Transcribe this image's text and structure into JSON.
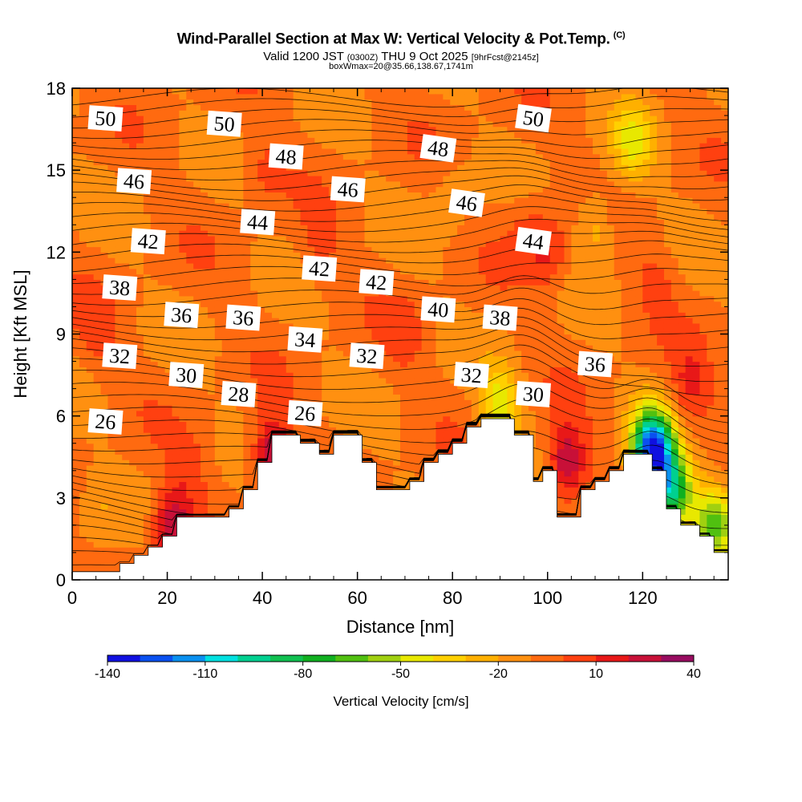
{
  "chart_data": {
    "type": "heatmap",
    "title": "Wind-Parallel Section at Max W: Vertical Velocity & Pot.Temp.",
    "title_mark": "(C)",
    "subtitle_main_a": "Valid 1200 JST",
    "subtitle_utc": "(0300Z)",
    "subtitle_main_b": "THU 9 Oct 2025",
    "subtitle_fcst": "[9hrFcst@2145z]",
    "subtitle2": "boxWmax=20@35.66,138.67,1741m",
    "xlabel": "Distance [nm]",
    "ylabel": "Height [Kft MSL]",
    "xlim": [
      0,
      138
    ],
    "ylim": [
      0,
      18
    ],
    "xticks": [
      "0",
      "20",
      "40",
      "60",
      "80",
      "100",
      "120"
    ],
    "xtick_values": [
      0,
      20,
      40,
      60,
      80,
      100,
      120
    ],
    "yticks": [
      "0",
      "3",
      "6",
      "9",
      "12",
      "15",
      "18"
    ],
    "ytick_values": [
      0,
      3,
      6,
      9,
      12,
      15,
      18
    ],
    "colorbar": {
      "title": "Vertical Velocity [cm/s]",
      "labels": [
        "-140",
        "-110",
        "-80",
        "-50",
        "-20",
        "10",
        "40"
      ],
      "label_values": [
        -140,
        -110,
        -80,
        -50,
        -20,
        10,
        40
      ],
      "range": [
        -140,
        40
      ],
      "step": 10,
      "colors": [
        "#1010e0",
        "#0a50f0",
        "#0a90f0",
        "#00e0e0",
        "#00d090",
        "#10c050",
        "#10b020",
        "#50c010",
        "#a0d010",
        "#e8e800",
        "#ffd000",
        "#ffb000",
        "#ff9010",
        "#ff6a10",
        "#ff4010",
        "#e81818",
        "#c81038",
        "#980c60"
      ]
    },
    "terrain": [
      [
        0,
        0.3
      ],
      [
        10,
        0.3
      ],
      [
        10,
        0.6
      ],
      [
        13,
        0.6
      ],
      [
        13,
        0.9
      ],
      [
        16,
        0.9
      ],
      [
        16,
        1.2
      ],
      [
        19,
        1.2
      ],
      [
        19,
        1.6
      ],
      [
        22,
        1.6
      ],
      [
        22,
        2.3
      ],
      [
        33,
        2.3
      ],
      [
        33,
        2.6
      ],
      [
        36,
        2.6
      ],
      [
        36,
        3.3
      ],
      [
        39,
        3.3
      ],
      [
        39,
        4.3
      ],
      [
        42,
        4.3
      ],
      [
        42,
        5.3
      ],
      [
        48,
        5.3
      ],
      [
        48,
        5.0
      ],
      [
        52,
        5.0
      ],
      [
        52,
        4.6
      ],
      [
        55,
        4.6
      ],
      [
        55,
        5.3
      ],
      [
        61,
        5.3
      ],
      [
        61,
        4.3
      ],
      [
        64,
        4.3
      ],
      [
        64,
        3.3
      ],
      [
        71,
        3.3
      ],
      [
        71,
        3.6
      ],
      [
        74,
        3.6
      ],
      [
        74,
        4.3
      ],
      [
        77,
        4.3
      ],
      [
        77,
        4.6
      ],
      [
        80,
        4.6
      ],
      [
        80,
        5.0
      ],
      [
        83,
        5.0
      ],
      [
        83,
        5.6
      ],
      [
        86,
        5.6
      ],
      [
        86,
        5.9
      ],
      [
        93,
        5.9
      ],
      [
        93,
        5.3
      ],
      [
        97,
        5.3
      ],
      [
        97,
        3.6
      ],
      [
        99,
        3.6
      ],
      [
        99,
        4.0
      ],
      [
        102,
        4.0
      ],
      [
        102,
        2.3
      ],
      [
        107,
        2.3
      ],
      [
        107,
        3.3
      ],
      [
        110,
        3.3
      ],
      [
        110,
        3.6
      ],
      [
        113,
        3.6
      ],
      [
        113,
        4.0
      ],
      [
        116,
        4.0
      ],
      [
        116,
        4.6
      ],
      [
        122,
        4.6
      ],
      [
        122,
        4.0
      ],
      [
        125,
        4.0
      ],
      [
        125,
        2.6
      ],
      [
        128,
        2.6
      ],
      [
        128,
        2.0
      ],
      [
        132,
        2.0
      ],
      [
        132,
        1.6
      ],
      [
        135,
        1.6
      ],
      [
        135,
        1.0
      ],
      [
        138,
        1.0
      ]
    ],
    "theta_contours": [
      {
        "label": "50",
        "x": 7,
        "y": 16.9
      },
      {
        "label": "50",
        "x": 32,
        "y": 16.7
      },
      {
        "label": "48",
        "x": 45,
        "y": 15.5
      },
      {
        "label": "48",
        "x": 77,
        "y": 15.8
      },
      {
        "label": "50",
        "x": 97,
        "y": 16.9
      },
      {
        "label": "46",
        "x": 13,
        "y": 14.6
      },
      {
        "label": "46",
        "x": 58,
        "y": 14.3
      },
      {
        "label": "46",
        "x": 83,
        "y": 13.8
      },
      {
        "label": "44",
        "x": 39,
        "y": 13.1
      },
      {
        "label": "44",
        "x": 97,
        "y": 12.4
      },
      {
        "label": "42",
        "x": 16,
        "y": 12.4
      },
      {
        "label": "42",
        "x": 52,
        "y": 11.4
      },
      {
        "label": "42",
        "x": 64,
        "y": 10.9
      },
      {
        "label": "38",
        "x": 10,
        "y": 10.7
      },
      {
        "label": "40",
        "x": 77,
        "y": 9.9
      },
      {
        "label": "38",
        "x": 90,
        "y": 9.6
      },
      {
        "label": "36",
        "x": 23,
        "y": 9.7
      },
      {
        "label": "36",
        "x": 36,
        "y": 9.6
      },
      {
        "label": "34",
        "x": 49,
        "y": 8.8
      },
      {
        "label": "32",
        "x": 10,
        "y": 8.2
      },
      {
        "label": "32",
        "x": 62,
        "y": 8.2
      },
      {
        "label": "36",
        "x": 110,
        "y": 7.9
      },
      {
        "label": "30",
        "x": 24,
        "y": 7.5
      },
      {
        "label": "32",
        "x": 84,
        "y": 7.5
      },
      {
        "label": "28",
        "x": 35,
        "y": 6.8
      },
      {
        "label": "30",
        "x": 97,
        "y": 6.8
      },
      {
        "label": "26",
        "x": 49,
        "y": 6.1
      },
      {
        "label": "26",
        "x": 7,
        "y": 5.8
      }
    ],
    "w_features": [
      {
        "x": 5,
        "y": 9,
        "w": 10
      },
      {
        "x": 25,
        "y": 4,
        "w": 10
      },
      {
        "x": 40,
        "y": 15,
        "w": 10
      },
      {
        "x": 52,
        "y": 12,
        "w": 10
      },
      {
        "x": 70,
        "y": 9,
        "w": 10
      },
      {
        "x": 80,
        "y": 14,
        "w": -10
      },
      {
        "x": 95,
        "y": 13,
        "w": 10
      },
      {
        "x": 100,
        "y": 12,
        "w": 20
      },
      {
        "x": 110,
        "y": 13,
        "w": -20
      },
      {
        "x": 118,
        "y": 16,
        "w": -30
      },
      {
        "x": 123,
        "y": 11,
        "w": 10
      },
      {
        "x": 130,
        "y": 7,
        "w": 20
      },
      {
        "x": 104,
        "y": 4.3,
        "w": 40
      },
      {
        "x": 42,
        "y": 4.6,
        "w": 40
      },
      {
        "x": 21,
        "y": 2.0,
        "w": 40
      },
      {
        "x": 90,
        "y": 6.3,
        "w": -40
      },
      {
        "x": 122,
        "y": 4.8,
        "w": -120
      },
      {
        "x": 126,
        "y": 3.3,
        "w": -80
      },
      {
        "x": 135,
        "y": 2.1,
        "w": -50
      },
      {
        "x": 5,
        "y": 2.5,
        "w": -10
      }
    ]
  }
}
